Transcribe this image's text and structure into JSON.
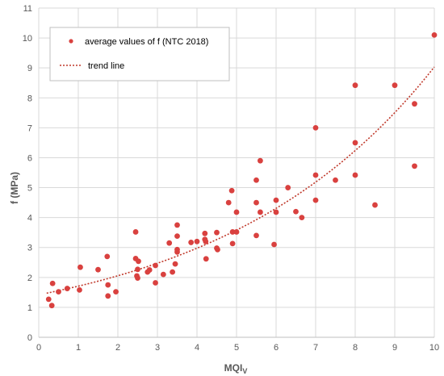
{
  "chart_data": {
    "type": "scatter",
    "xlabel": "MQI",
    "xlabel_sub": "V",
    "ylabel": "f   (MPa)",
    "xlim": [
      0,
      10
    ],
    "ylim": [
      0,
      11
    ],
    "x_ticks": [
      "0",
      "1",
      "2",
      "3",
      "4",
      "5",
      "6",
      "7",
      "8",
      "9",
      "10"
    ],
    "y_ticks": [
      "0",
      "1",
      "2",
      "3",
      "4",
      "5",
      "6",
      "7",
      "8",
      "9",
      "10",
      "11"
    ],
    "grid": true,
    "legend_position": "top-left",
    "legend": {
      "points_label": "average values of f (NTC 2018)",
      "trend_label": "trend line"
    },
    "colors": {
      "points": "#d9413f",
      "trend": "#c0392b",
      "grid": "#d9d9d9"
    },
    "series": [
      {
        "name": "average values of f (NTC 2018)",
        "kind": "points",
        "points": [
          [
            0.25,
            1.27
          ],
          [
            0.33,
            1.06
          ],
          [
            0.35,
            1.8
          ],
          [
            0.5,
            1.52
          ],
          [
            0.72,
            1.63
          ],
          [
            1.03,
            1.58
          ],
          [
            1.05,
            2.34
          ],
          [
            1.5,
            2.26
          ],
          [
            1.73,
            2.7
          ],
          [
            1.75,
            1.75
          ],
          [
            1.75,
            1.38
          ],
          [
            1.95,
            1.52
          ],
          [
            2.45,
            3.52
          ],
          [
            2.45,
            2.63
          ],
          [
            2.48,
            2.05
          ],
          [
            2.5,
            2.27
          ],
          [
            2.5,
            1.98
          ],
          [
            2.52,
            2.54
          ],
          [
            2.75,
            2.18
          ],
          [
            2.8,
            2.25
          ],
          [
            2.95,
            2.4
          ],
          [
            2.95,
            1.82
          ],
          [
            3.15,
            2.1
          ],
          [
            3.3,
            3.15
          ],
          [
            3.38,
            2.18
          ],
          [
            3.45,
            2.45
          ],
          [
            3.5,
            3.75
          ],
          [
            3.5,
            3.38
          ],
          [
            3.5,
            2.93
          ],
          [
            3.5,
            2.85
          ],
          [
            3.85,
            3.17
          ],
          [
            4.0,
            3.2
          ],
          [
            4.2,
            3.47
          ],
          [
            4.2,
            3.27
          ],
          [
            4.22,
            3.2
          ],
          [
            4.23,
            2.62
          ],
          [
            4.5,
            3.5
          ],
          [
            4.5,
            2.98
          ],
          [
            4.52,
            2.93
          ],
          [
            4.8,
            4.5
          ],
          [
            4.88,
            4.9
          ],
          [
            4.9,
            3.52
          ],
          [
            4.9,
            3.13
          ],
          [
            5.0,
            4.18
          ],
          [
            5.0,
            3.52
          ],
          [
            5.5,
            5.25
          ],
          [
            5.5,
            4.5
          ],
          [
            5.5,
            3.4
          ],
          [
            5.6,
            5.9
          ],
          [
            5.6,
            4.18
          ],
          [
            5.95,
            3.1
          ],
          [
            6.0,
            4.58
          ],
          [
            6.0,
            4.18
          ],
          [
            6.3,
            5.0
          ],
          [
            6.5,
            4.2
          ],
          [
            6.65,
            4.0
          ],
          [
            7.0,
            7.0
          ],
          [
            7.0,
            5.42
          ],
          [
            7.0,
            4.58
          ],
          [
            7.5,
            5.25
          ],
          [
            8.0,
            8.42
          ],
          [
            8.0,
            6.5
          ],
          [
            8.0,
            5.42
          ],
          [
            8.5,
            4.42
          ],
          [
            9.0,
            8.42
          ],
          [
            9.5,
            7.8
          ],
          [
            9.5,
            5.72
          ],
          [
            10.0,
            10.1
          ]
        ]
      },
      {
        "name": "trend line",
        "kind": "exponential-trend",
        "a": 1.42,
        "b": 0.185
      }
    ]
  }
}
